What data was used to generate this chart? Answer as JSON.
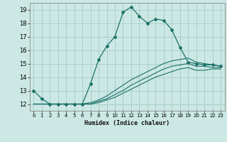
{
  "xlabel": "Humidex (Indice chaleur)",
  "bg_color": "#cce8e4",
  "grid_color": "#aacfcb",
  "line_color": "#1a7068",
  "xlim": [
    -0.5,
    23.5
  ],
  "ylim": [
    11.5,
    19.5
  ],
  "xticks": [
    0,
    1,
    2,
    3,
    4,
    5,
    6,
    7,
    8,
    9,
    10,
    11,
    12,
    13,
    14,
    15,
    16,
    17,
    18,
    19,
    20,
    21,
    22,
    23
  ],
  "yticks": [
    12,
    13,
    14,
    15,
    16,
    17,
    18,
    19
  ],
  "series1_x": [
    0,
    1,
    2,
    3,
    4,
    5,
    6,
    7,
    8,
    9,
    10,
    11,
    12,
    13,
    14,
    15,
    16,
    17,
    18,
    19,
    20,
    21,
    22,
    23
  ],
  "series1_y": [
    13.0,
    12.4,
    12.0,
    12.0,
    12.0,
    12.0,
    12.0,
    13.5,
    15.3,
    16.3,
    17.0,
    18.8,
    19.2,
    18.5,
    18.0,
    18.3,
    18.2,
    17.5,
    16.2,
    15.1,
    15.0,
    14.9,
    14.9,
    14.8
  ],
  "series2_x": [
    0,
    1,
    2,
    3,
    4,
    5,
    6,
    7,
    8,
    9,
    10,
    11,
    12,
    13,
    14,
    15,
    16,
    17,
    18,
    19,
    20,
    21,
    22,
    23
  ],
  "series2_y": [
    12.0,
    12.0,
    12.0,
    12.0,
    12.0,
    12.0,
    12.0,
    12.1,
    12.3,
    12.6,
    13.0,
    13.4,
    13.8,
    14.1,
    14.4,
    14.7,
    15.0,
    15.2,
    15.3,
    15.4,
    15.1,
    15.0,
    14.9,
    14.8
  ],
  "series3_x": [
    0,
    1,
    2,
    3,
    4,
    5,
    6,
    7,
    8,
    9,
    10,
    11,
    12,
    13,
    14,
    15,
    16,
    17,
    18,
    19,
    20,
    21,
    22,
    23
  ],
  "series3_y": [
    12.0,
    12.0,
    12.0,
    12.0,
    12.0,
    12.0,
    12.0,
    12.0,
    12.2,
    12.4,
    12.7,
    13.0,
    13.4,
    13.7,
    14.0,
    14.3,
    14.6,
    14.8,
    14.9,
    15.0,
    14.8,
    14.8,
    14.7,
    14.7
  ],
  "series4_x": [
    0,
    1,
    2,
    3,
    4,
    5,
    6,
    7,
    8,
    9,
    10,
    11,
    12,
    13,
    14,
    15,
    16,
    17,
    18,
    19,
    20,
    21,
    22,
    23
  ],
  "series4_y": [
    12.0,
    12.0,
    12.0,
    12.0,
    12.0,
    12.0,
    12.0,
    12.0,
    12.1,
    12.3,
    12.5,
    12.8,
    13.1,
    13.4,
    13.7,
    14.0,
    14.2,
    14.4,
    14.6,
    14.7,
    14.5,
    14.5,
    14.6,
    14.6
  ]
}
